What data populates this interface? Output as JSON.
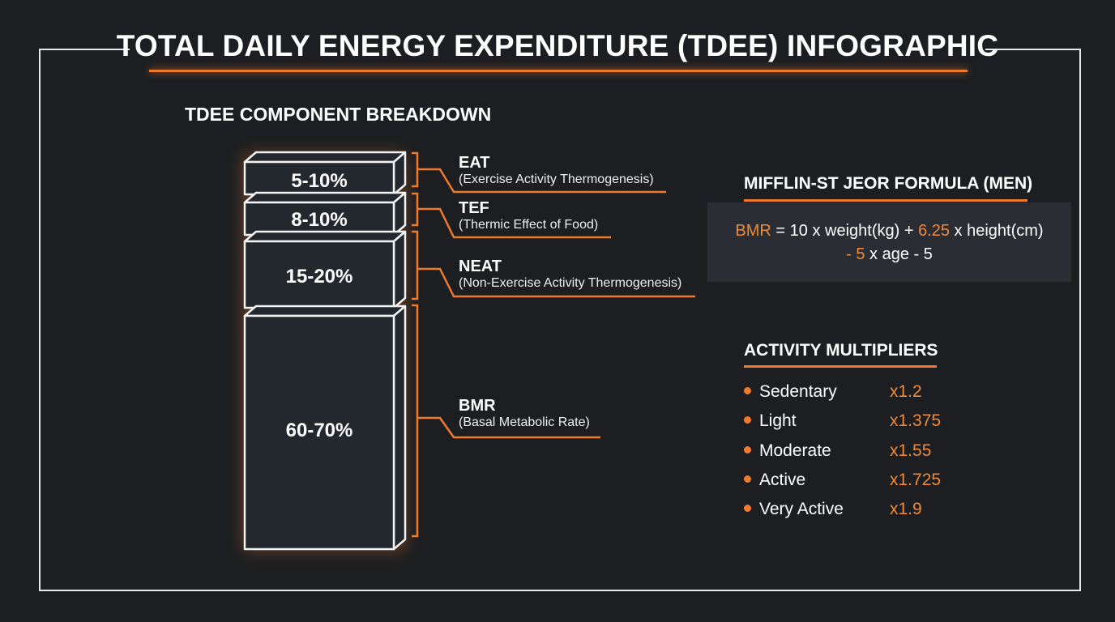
{
  "title": "TOTAL DAILY ENERGY EXPENDITURE (TDEE) INFOGRAPHIC",
  "breakdown": {
    "heading": "TDEE COMPONENT BREAKDOWN",
    "components": [
      {
        "percent": "5-10%",
        "abbr": "EAT",
        "name": "(Exercise Activity Thermogenesis)"
      },
      {
        "percent": "8-10%",
        "abbr": "TEF",
        "name": "(Thermic Effect of Food)"
      },
      {
        "percent": "15-20%",
        "abbr": "NEAT",
        "name": "(Non-Exercise Activity Thermogenesis)"
      },
      {
        "percent": "60-70%",
        "abbr": "BMR",
        "name": "(Basal Metabolic Rate)"
      }
    ]
  },
  "formula": {
    "heading": "MIFFLIN-ST JEOR FORMULA (MEN)",
    "line1": [
      {
        "text": "BMR",
        "accent": true
      },
      {
        "text": " = 10 x weight(kg) + ",
        "accent": false
      },
      {
        "text": "6.25",
        "accent": true
      },
      {
        "text": " x height(cm)",
        "accent": false
      }
    ],
    "line2": [
      {
        "text": "- 5",
        "accent": true
      },
      {
        "text": " x age - 5",
        "accent": false
      }
    ]
  },
  "multipliers": {
    "heading": "ACTIVITY MULTIPLIERS",
    "items": [
      {
        "label": "Sedentary",
        "value": "x1.2"
      },
      {
        "label": "Light",
        "value": "x1.375"
      },
      {
        "label": "Moderate",
        "value": "x1.55"
      },
      {
        "label": "Active",
        "value": "x1.725"
      },
      {
        "label": "Very Active",
        "value": "x1.9"
      }
    ]
  },
  "colors": {
    "accent": "#f07a2c",
    "background": "#1c1e21",
    "panel": "#2a2e34"
  }
}
